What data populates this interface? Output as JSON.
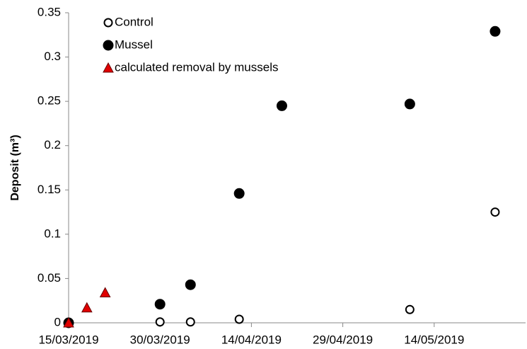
{
  "chart_data": {
    "type": "scatter",
    "y_label": "Deposit (m³)",
    "xlim": [
      "15/03/2019",
      "29/05/2019"
    ],
    "xticks": [
      "15/03/2019",
      "30/03/2019",
      "14/04/2019",
      "29/04/2019",
      "14/05/2019"
    ],
    "ylim": [
      0,
      0.35
    ],
    "yticks": [
      0,
      0.05,
      0.1,
      0.15,
      0.2,
      0.25,
      0.3,
      0.35
    ],
    "legend": "upper-left",
    "series": [
      {
        "name": "Control",
        "marker": "open-circle",
        "color": "#000000",
        "x": [
          "15/03/2019",
          "30/03/2019",
          "04/04/2019",
          "12/04/2019",
          "10/05/2019",
          "24/05/2019"
        ],
        "values": [
          0,
          0.001,
          0.001,
          0.004,
          0.015,
          0.125
        ]
      },
      {
        "name": "Mussel",
        "marker": "filled-circle",
        "color": "#000000",
        "x": [
          "15/03/2019",
          "30/03/2019",
          "04/04/2019",
          "12/04/2019",
          "19/04/2019",
          "10/05/2019",
          "24/05/2019"
        ],
        "values": [
          0,
          0.021,
          0.043,
          0.146,
          0.245,
          0.247,
          0.329
        ]
      },
      {
        "name": "calculated removal by mussels",
        "marker": "triangle",
        "color": "#e00000",
        "x": [
          "15/03/2019",
          "18/03/2019",
          "21/03/2019"
        ],
        "values": [
          0,
          0.017,
          0.034
        ]
      }
    ]
  }
}
